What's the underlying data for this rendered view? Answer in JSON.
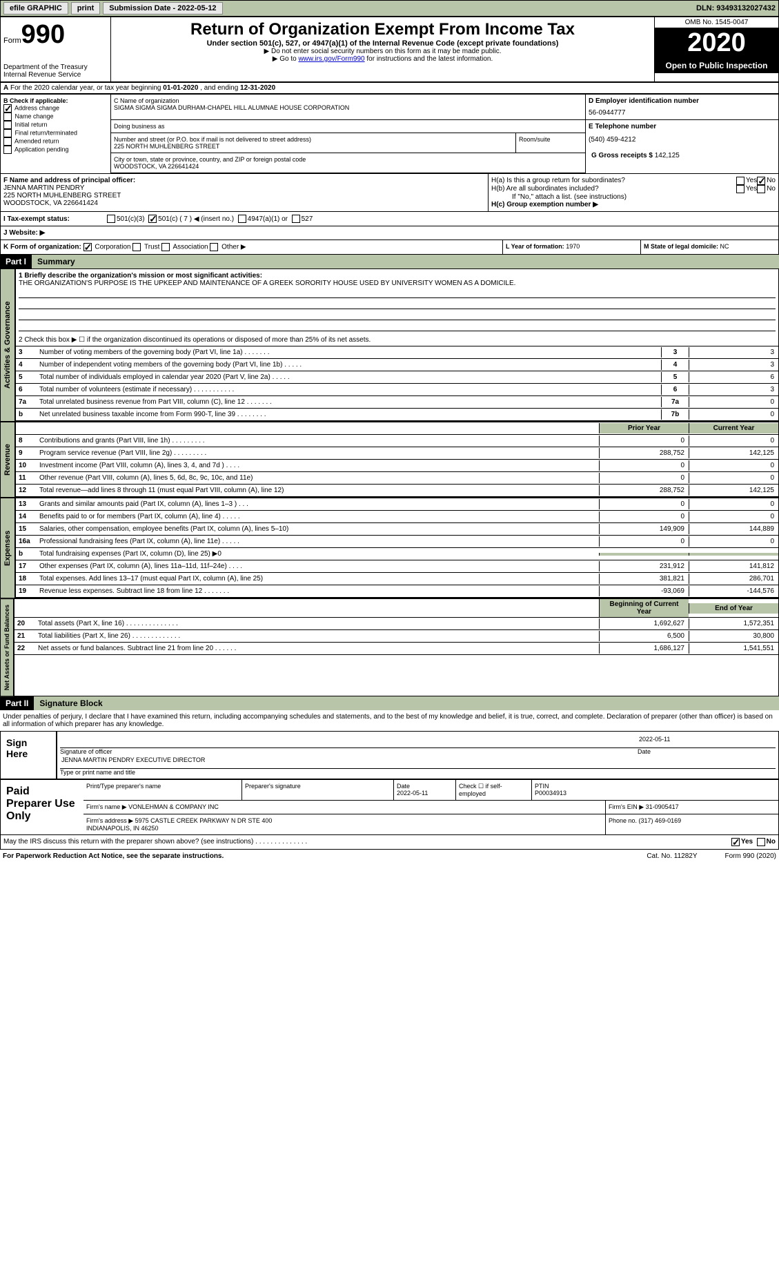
{
  "topbar": {
    "efile": "efile GRAPHIC",
    "print": "print",
    "submission_label": "Submission Date - ",
    "submission_date": "2022-05-12",
    "dln_label": "DLN: ",
    "dln": "93493132027432"
  },
  "header": {
    "form_label": "Form",
    "form_number": "990",
    "dept": "Department of the Treasury\nInternal Revenue Service",
    "title": "Return of Organization Exempt From Income Tax",
    "subtitle": "Under section 501(c), 527, or 4947(a)(1) of the Internal Revenue Code (except private foundations)",
    "note1": "▶ Do not enter social security numbers on this form as it may be made public.",
    "note2_pre": "▶ Go to ",
    "note2_link": "www.irs.gov/Form990",
    "note2_post": " for instructions and the latest information.",
    "omb": "OMB No. 1545-0047",
    "year": "2020",
    "open": "Open to Public Inspection"
  },
  "section_a": {
    "text": "For the 2020 calendar year, or tax year beginning ",
    "begin": "01-01-2020",
    "mid": " , and ending ",
    "end": "12-31-2020"
  },
  "col_b": {
    "label": "B Check if applicable:",
    "items": [
      "Address change",
      "Name change",
      "Initial return",
      "Final return/terminated",
      "Amended return",
      "Application pending"
    ],
    "checked": [
      true,
      false,
      false,
      false,
      false,
      false
    ]
  },
  "org": {
    "c_label": "C Name of organization",
    "name": "SIGMA SIGMA SIGMA DURHAM-CHAPEL HILL ALUMNAE HOUSE CORPORATION",
    "dba_label": "Doing business as",
    "addr_label": "Number and street (or P.O. box if mail is not delivered to street address)",
    "addr": "225 NORTH MUHLENBERG STREET",
    "room_label": "Room/suite",
    "city_label": "City or town, state or province, country, and ZIP or foreign postal code",
    "city": "WOODSTOCK, VA  226641424",
    "d_label": "D Employer identification number",
    "ein": "56-0944777",
    "e_label": "E Telephone number",
    "phone": "(540) 459-4212",
    "g_label": "G Gross receipts $ ",
    "gross": "142,125"
  },
  "f": {
    "label": "F Name and address of principal officer:",
    "name": "JENNA MARTIN PENDRY",
    "addr1": "225 NORTH MUHLENBERG STREET",
    "addr2": "WOODSTOCK, VA  226641424"
  },
  "h": {
    "ha_label": "H(a) Is this a group return for subordinates?",
    "hb_label": "H(b) Are all subordinates included?",
    "hb_note": "If \"No,\" attach a list. (see instructions)",
    "hc_label": "H(c) Group exemption number ▶",
    "yes": "Yes",
    "no": "No"
  },
  "i": {
    "label": "I Tax-exempt status:",
    "opts": [
      "501(c)(3)",
      "501(c) ( 7 ) ◀ (insert no.)",
      "4947(a)(1) or",
      "527"
    ]
  },
  "j": {
    "label": "J Website: ▶"
  },
  "k": {
    "label": "K Form of organization:",
    "opts": [
      "Corporation",
      "Trust",
      "Association",
      "Other ▶"
    ]
  },
  "l": {
    "label": "L Year of formation: ",
    "val": "1970"
  },
  "m": {
    "label": "M State of legal domicile: ",
    "val": "NC"
  },
  "parts": {
    "p1": "Part I",
    "p1_title": "Summary",
    "p2": "Part II",
    "p2_title": "Signature Block"
  },
  "vtabs": {
    "ag": "Activities & Governance",
    "rev": "Revenue",
    "exp": "Expenses",
    "na": "Net Assets or Fund Balances"
  },
  "summary": {
    "l1_label": "1  Briefly describe the organization's mission or most significant activities:",
    "l1_text": "THE ORGANIZATION'S PURPOSE IS THE UPKEEP AND MAINTENANCE OF A GREEK SORORITY HOUSE USED BY UNIVERSITY WOMEN AS A DOMICILE.",
    "l2": "2  Check this box ▶ ☐  if the organization discontinued its operations or disposed of more than 25% of its net assets.",
    "prior_year": "Prior Year",
    "current_year": "Current Year",
    "begin_year": "Beginning of Current Year",
    "end_year": "End of Year"
  },
  "lines": [
    {
      "n": "3",
      "t": "Number of voting members of the governing body (Part VI, line 1a)  .  .  .  .  .  .  .",
      "c": "3",
      "v": "3"
    },
    {
      "n": "4",
      "t": "Number of independent voting members of the governing body (Part VI, line 1b)  .  .  .  .  .",
      "c": "4",
      "v": "3"
    },
    {
      "n": "5",
      "t": "Total number of individuals employed in calendar year 2020 (Part V, line 2a)  .  .  .  .  .",
      "c": "5",
      "v": "6"
    },
    {
      "n": "6",
      "t": "Total number of volunteers (estimate if necessary)  .  .  .  .  .  .  .  .  .  .  .",
      "c": "6",
      "v": "3"
    },
    {
      "n": "7a",
      "t": "Total unrelated business revenue from Part VIII, column (C), line 12  .  .  .  .  .  .  .",
      "c": "7a",
      "v": "0"
    },
    {
      "n": "b",
      "t": "Net unrelated business taxable income from Form 990-T, line 39  .  .  .  .  .  .  .  .",
      "c": "7b",
      "v": "0"
    }
  ],
  "rev_lines": [
    {
      "n": "8",
      "t": "Contributions and grants (Part VIII, line 1h)  .  .  .  .  .  .  .  .  .",
      "py": "0",
      "cy": "0"
    },
    {
      "n": "9",
      "t": "Program service revenue (Part VIII, line 2g)  .  .  .  .  .  .  .  .  .",
      "py": "288,752",
      "cy": "142,125"
    },
    {
      "n": "10",
      "t": "Investment income (Part VIII, column (A), lines 3, 4, and 7d )  .  .  .  .",
      "py": "0",
      "cy": "0"
    },
    {
      "n": "11",
      "t": "Other revenue (Part VIII, column (A), lines 5, 6d, 8c, 9c, 10c, and 11e)",
      "py": "0",
      "cy": "0"
    },
    {
      "n": "12",
      "t": "Total revenue—add lines 8 through 11 (must equal Part VIII, column (A), line 12)",
      "py": "288,752",
      "cy": "142,125"
    }
  ],
  "exp_lines": [
    {
      "n": "13",
      "t": "Grants and similar amounts paid (Part IX, column (A), lines 1–3 )  .  .  .",
      "py": "0",
      "cy": "0"
    },
    {
      "n": "14",
      "t": "Benefits paid to or for members (Part IX, column (A), line 4)  .  .  .  .  .",
      "py": "0",
      "cy": "0"
    },
    {
      "n": "15",
      "t": "Salaries, other compensation, employee benefits (Part IX, column (A), lines 5–10)",
      "py": "149,909",
      "cy": "144,889"
    },
    {
      "n": "16a",
      "t": "Professional fundraising fees (Part IX, column (A), line 11e)  .  .  .  .  .",
      "py": "0",
      "cy": "0"
    },
    {
      "n": "b",
      "t": "Total fundraising expenses (Part IX, column (D), line 25) ▶0",
      "py": "",
      "cy": "",
      "shaded": true
    },
    {
      "n": "17",
      "t": "Other expenses (Part IX, column (A), lines 11a–11d, 11f–24e)  .  .  .  .",
      "py": "231,912",
      "cy": "141,812"
    },
    {
      "n": "18",
      "t": "Total expenses. Add lines 13–17 (must equal Part IX, column (A), line 25)",
      "py": "381,821",
      "cy": "286,701"
    },
    {
      "n": "19",
      "t": "Revenue less expenses. Subtract line 18 from line 12  .  .  .  .  .  .  .",
      "py": "-93,069",
      "cy": "-144,576"
    }
  ],
  "na_lines": [
    {
      "n": "20",
      "t": "Total assets (Part X, line 16)  .  .  .  .  .  .  .  .  .  .  .  .  .  .",
      "py": "1,692,627",
      "cy": "1,572,351"
    },
    {
      "n": "21",
      "t": "Total liabilities (Part X, line 26)  .  .  .  .  .  .  .  .  .  .  .  .  .",
      "py": "6,500",
      "cy": "30,800"
    },
    {
      "n": "22",
      "t": "Net assets or fund balances. Subtract line 21 from line 20  .  .  .  .  .  .",
      "py": "1,686,127",
      "cy": "1,541,551"
    }
  ],
  "sig": {
    "penalties": "Under penalties of perjury, I declare that I have examined this return, including accompanying schedules and statements, and to the best of my knowledge and belief, it is true, correct, and complete. Declaration of preparer (other than officer) is based on all information of which preparer has any knowledge.",
    "sign_here": "Sign Here",
    "sig_officer": "Signature of officer",
    "date_label": "Date",
    "date": "2022-05-11",
    "officer_name": "JENNA MARTIN PENDRY  EXECUTIVE DIRECTOR",
    "type_name": "Type or print name and title"
  },
  "prep": {
    "label": "Paid Preparer Use Only",
    "print_name": "Print/Type preparer's name",
    "prep_sig": "Preparer's signature",
    "date_label": "Date",
    "date": "2022-05-11",
    "check_label": "Check ☐ if self-employed",
    "ptin_label": "PTIN",
    "ptin": "P00034913",
    "firm_name_label": "Firm's name    ▶ ",
    "firm_name": "VONLEHMAN & COMPANY INC",
    "firm_ein_label": "Firm's EIN ▶ ",
    "firm_ein": "31-0905417",
    "firm_addr_label": "Firm's address ▶ ",
    "firm_addr": "5975 CASTLE CREEK PARKWAY N DR STE 400\nINDIANAPOLIS, IN  46250",
    "phone_label": "Phone no. ",
    "phone": "(317) 469-0169"
  },
  "footer": {
    "discuss": "May the IRS discuss this return with the preparer shown above? (see instructions)  .  .  .  .  .  .  .  .  .  .  .  .  .  .",
    "yes": "Yes",
    "no": "No",
    "paperwork": "For Paperwork Reduction Act Notice, see the separate instructions.",
    "cat": "Cat. No. 11282Y",
    "form": "Form 990 (2020)"
  }
}
